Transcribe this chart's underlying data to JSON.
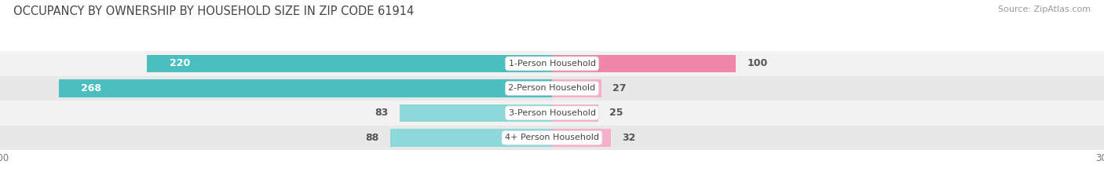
{
  "title": "OCCUPANCY BY OWNERSHIP BY HOUSEHOLD SIZE IN ZIP CODE 61914",
  "source": "Source: ZipAtlas.com",
  "categories": [
    "1-Person Household",
    "2-Person Household",
    "3-Person Household",
    "4+ Person Household"
  ],
  "owner_values": [
    220,
    268,
    83,
    88
  ],
  "renter_values": [
    100,
    27,
    25,
    32
  ],
  "owner_color": "#4BBFBF",
  "owner_color_light": "#8DD8D8",
  "renter_color": "#F087AB",
  "renter_color_light": "#F5AECB",
  "row_bg_odd": "#F2F2F2",
  "row_bg_even": "#E8E8E8",
  "axis_max": 300,
  "title_fontsize": 10.5,
  "source_fontsize": 8,
  "tick_fontsize": 8.5,
  "bar_label_fontsize": 9,
  "category_fontsize": 8,
  "legend_fontsize": 9
}
